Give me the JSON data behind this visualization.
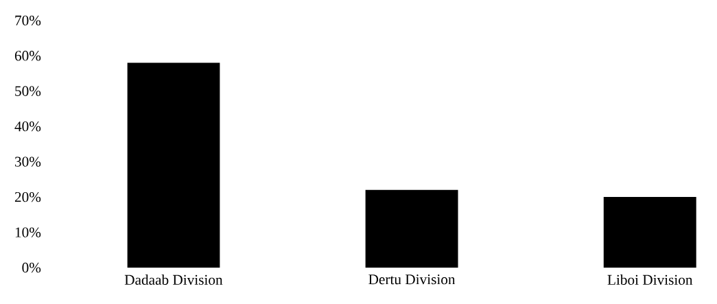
{
  "chart_data": {
    "type": "bar",
    "categories": [
      "Dadaab Division",
      "Dertu Division",
      "Liboi Division"
    ],
    "values": [
      58,
      22,
      20
    ],
    "color": "#000000",
    "ylim": [
      0,
      70
    ],
    "yticks": [
      {
        "value": 0,
        "label": "0%"
      },
      {
        "value": 10,
        "label": "10%"
      },
      {
        "value": 20,
        "label": "20%"
      },
      {
        "value": 30,
        "label": "30%"
      },
      {
        "value": 40,
        "label": "40%"
      },
      {
        "value": 50,
        "label": "50%"
      },
      {
        "value": 60,
        "label": "60%"
      },
      {
        "value": 70,
        "label": "70%"
      }
    ],
    "grid": false
  }
}
